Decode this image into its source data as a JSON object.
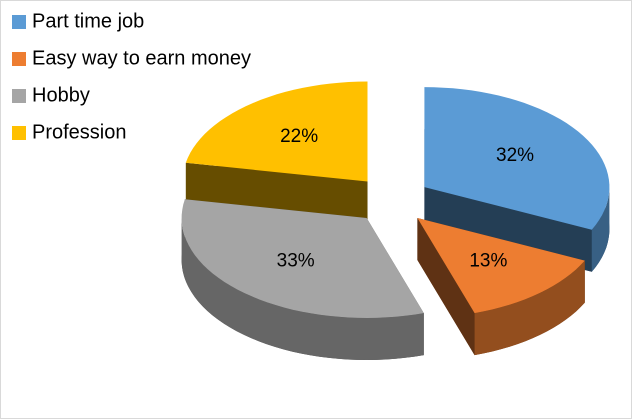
{
  "chart_data": {
    "type": "pie3d",
    "categories": [
      "Part time job",
      "Easy way to earn money",
      "Hobby",
      "Profession"
    ],
    "values": [
      32,
      13,
      33,
      22
    ],
    "value_labels": [
      "32%",
      "13%",
      "33%",
      "22%"
    ],
    "colors": [
      "#5b9bd5",
      "#ed7d31",
      "#a5a5a5",
      "#ffc000"
    ],
    "legend": "top-left"
  }
}
